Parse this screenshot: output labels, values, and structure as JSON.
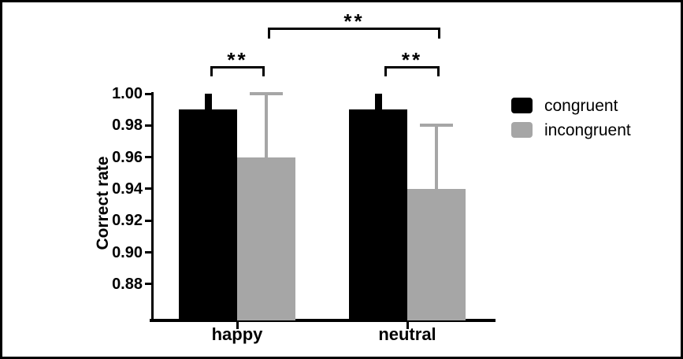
{
  "figure": {
    "background": "#ffffff",
    "frame_color": "#000000",
    "text_color": "#000000"
  },
  "chart_data": {
    "type": "bar",
    "title": "",
    "xlabel": "",
    "ylabel": "Correct rate",
    "categories": [
      "happy",
      "neutral"
    ],
    "series": [
      {
        "name": "congruent",
        "color": "#000000",
        "values": [
          0.99,
          0.99
        ],
        "error_up": [
          0.01,
          0.01
        ]
      },
      {
        "name": "incongruent",
        "color": "#a6a6a6",
        "values": [
          0.96,
          0.94
        ],
        "error_up": [
          0.04,
          0.04
        ]
      }
    ],
    "y_axis": {
      "min": 0.86,
      "max": 1.0,
      "tick_step": 0.02,
      "tick_labels": [
        "1.00",
        "0.98",
        "0.96",
        "0.94",
        "0.92",
        "0.90",
        "0.88"
      ]
    },
    "grid": false,
    "legend": {
      "position": "right",
      "entries": [
        "congruent",
        "incongruent"
      ]
    },
    "significance": [
      {
        "label": "**",
        "between": [
          "happy congruent",
          "happy incongruent"
        ]
      },
      {
        "label": "**",
        "between": [
          "neutral congruent",
          "neutral incongruent"
        ]
      },
      {
        "label": "**",
        "between": [
          "happy incongruent",
          "neutral incongruent"
        ]
      }
    ]
  }
}
